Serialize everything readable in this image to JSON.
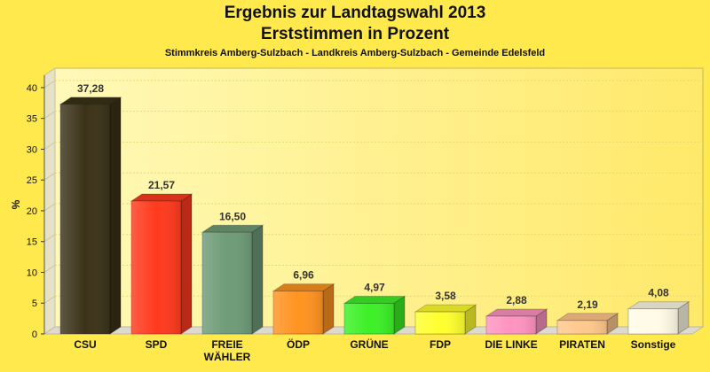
{
  "title_line1": "Ergebnis zur Landtagswahl 2013",
  "title_line2": "Erststimmen in Prozent",
  "subtitle": "Stimmkreis Amberg-Sulzbach - Landkreis Amberg-Sulzbach - Gemeinde Edelsfeld",
  "chart_data": {
    "type": "bar",
    "title": "Ergebnis zur Landtagswahl 2013 Erststimmen in Prozent",
    "subtitle": "Stimmkreis Amberg-Sulzbach - Landkreis Amberg-Sulzbach - Gemeinde Edelsfeld",
    "xlabel": "",
    "ylabel": "%",
    "ylim": [
      0,
      42
    ],
    "yticks": [
      0,
      5,
      10,
      15,
      20,
      25,
      30,
      35,
      40
    ],
    "grid": true,
    "categories": [
      [
        "CSU"
      ],
      [
        "SPD"
      ],
      [
        "FREIE",
        "WÄHLER"
      ],
      [
        "ÖDP"
      ],
      [
        "GRÜNE"
      ],
      [
        "FDP"
      ],
      [
        "DIE LINKE"
      ],
      [
        "PIRATEN"
      ],
      [
        "Sonstige"
      ]
    ],
    "values": [
      37.28,
      21.57,
      16.5,
      6.96,
      4.97,
      3.58,
      2.88,
      2.19,
      4.08
    ],
    "value_labels": [
      "37,28",
      "21,57",
      "16,50",
      "6,96",
      "4,97",
      "3,58",
      "2,88",
      "2,19",
      "4,08"
    ],
    "colors": [
      "#3b3218",
      "#ff3a1e",
      "#6e9b78",
      "#ff9320",
      "#3cf026",
      "#ffff2e",
      "#ff93c0",
      "#ffc88c",
      "#fffbe6"
    ]
  }
}
